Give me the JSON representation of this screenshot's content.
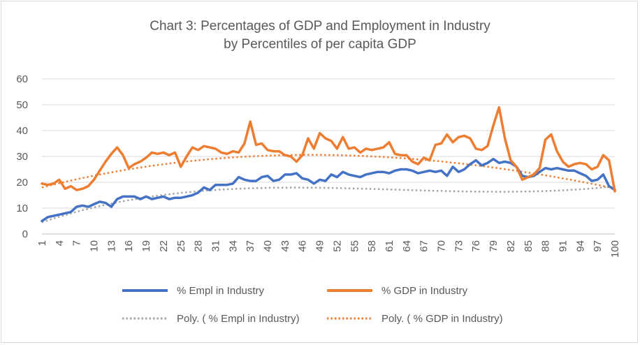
{
  "chart_data": {
    "type": "line",
    "title": "Chart 3: Percentages of GDP and Employment in Industry",
    "subtitle": "by Percentiles of per capita GDP",
    "xlabel": "",
    "ylabel": "",
    "ylim": [
      0,
      60
    ],
    "yticks": [
      0,
      10,
      20,
      30,
      40,
      50,
      60
    ],
    "xlim": [
      1,
      100
    ],
    "xtick_labels": [
      "1",
      "4",
      "7",
      "10",
      "13",
      "16",
      "19",
      "22",
      "25",
      "28",
      "31",
      "34",
      "37",
      "40",
      "43",
      "46",
      "49",
      "52",
      "55",
      "58",
      "61",
      "64",
      "67",
      "70",
      "73",
      "76",
      "79",
      "82",
      "85",
      "88",
      "91",
      "94",
      "97",
      "100"
    ],
    "grid": "horizontal",
    "legend_position": "bottom",
    "colors": {
      "empl": "#4472c4",
      "gdp": "#ed7d31",
      "empl_trend": "#a5a5a5",
      "gdp_trend": "#ed7d31",
      "grid": "#d9d9d9",
      "text": "#595959"
    },
    "x": [
      1,
      2,
      3,
      4,
      5,
      6,
      7,
      8,
      9,
      10,
      11,
      12,
      13,
      14,
      15,
      16,
      17,
      18,
      19,
      20,
      21,
      22,
      23,
      24,
      25,
      26,
      27,
      28,
      29,
      30,
      31,
      32,
      33,
      34,
      35,
      36,
      37,
      38,
      39,
      40,
      41,
      42,
      43,
      44,
      45,
      46,
      47,
      48,
      49,
      50,
      51,
      52,
      53,
      54,
      55,
      56,
      57,
      58,
      59,
      60,
      61,
      62,
      63,
      64,
      65,
      66,
      67,
      68,
      69,
      70,
      71,
      72,
      73,
      74,
      75,
      76,
      77,
      78,
      79,
      80,
      81,
      82,
      83,
      84,
      85,
      86,
      87,
      88,
      89,
      90,
      91,
      92,
      93,
      94,
      95,
      96,
      97,
      98,
      99,
      100
    ],
    "series": [
      {
        "name": "% Empl in Industry",
        "style": "solid",
        "values": [
          5,
          6.5,
          7,
          7.5,
          8,
          8.5,
          10.5,
          11,
          10.5,
          11.5,
          12.5,
          12,
          10.5,
          13.5,
          14.5,
          14.5,
          14.5,
          13.5,
          14.5,
          13.5,
          14,
          14.5,
          13.5,
          14,
          14,
          14.5,
          15,
          16,
          18,
          17,
          19,
          19,
          19,
          19.5,
          22,
          21,
          20.5,
          20.5,
          22,
          22.5,
          20.5,
          21,
          23,
          23,
          23.5,
          21.5,
          21,
          19.5,
          21,
          20.5,
          23,
          22,
          24,
          23,
          22.5,
          22,
          23,
          23.5,
          24,
          24,
          23.5,
          24.5,
          25,
          25,
          24.5,
          23.5,
          24,
          24.5,
          24,
          24.5,
          22.5,
          26,
          24,
          25,
          27,
          28.5,
          26.5,
          27.5,
          29,
          27.5,
          28,
          27.5,
          26,
          22.5,
          22,
          22.5,
          24,
          25.5,
          25,
          25.5,
          25,
          24.5,
          24.5,
          23.5,
          22.5,
          20.5,
          21,
          23,
          18.5,
          17
        ]
      },
      {
        "name": "% GDP in Industry",
        "style": "solid",
        "values": [
          19.5,
          19,
          19.5,
          21,
          17.5,
          18.5,
          17,
          17.5,
          18.5,
          21,
          24.5,
          28,
          31,
          33.5,
          30.5,
          25.5,
          27,
          28,
          29.5,
          31.5,
          31,
          31.5,
          30.5,
          31.5,
          26,
          30,
          33.5,
          32.5,
          34,
          33.5,
          33,
          31.5,
          31,
          32,
          31.5,
          35,
          43.5,
          34.5,
          35,
          32.5,
          32,
          32,
          30.5,
          30,
          28,
          30.5,
          37,
          33,
          39,
          37,
          36,
          33,
          37.5,
          33,
          33.5,
          31.5,
          33,
          32.5,
          33,
          33.5,
          35.5,
          31,
          30.5,
          30.5,
          28,
          27,
          29.5,
          28.5,
          34.5,
          35,
          38.5,
          35.5,
          37.5,
          38,
          37,
          33,
          32.5,
          34,
          42,
          49,
          37,
          28.5,
          26,
          21,
          22,
          23,
          25.5,
          36.5,
          38.5,
          32,
          28,
          26,
          27,
          27.5,
          27,
          25,
          26,
          30.5,
          28.5,
          16.5
        ]
      },
      {
        "name": "Poly. ( % Empl in Industry)",
        "style": "dotted",
        "coeffs": [
          3.75,
          0.78,
          -0.0136,
          7.27e-05
        ]
      },
      {
        "name": "Poly. ( % GDP in Industry)",
        "style": "dotted",
        "coeffs": [
          17.44,
          0.58,
          -0.00691,
          1.13e-05
        ]
      }
    ]
  }
}
